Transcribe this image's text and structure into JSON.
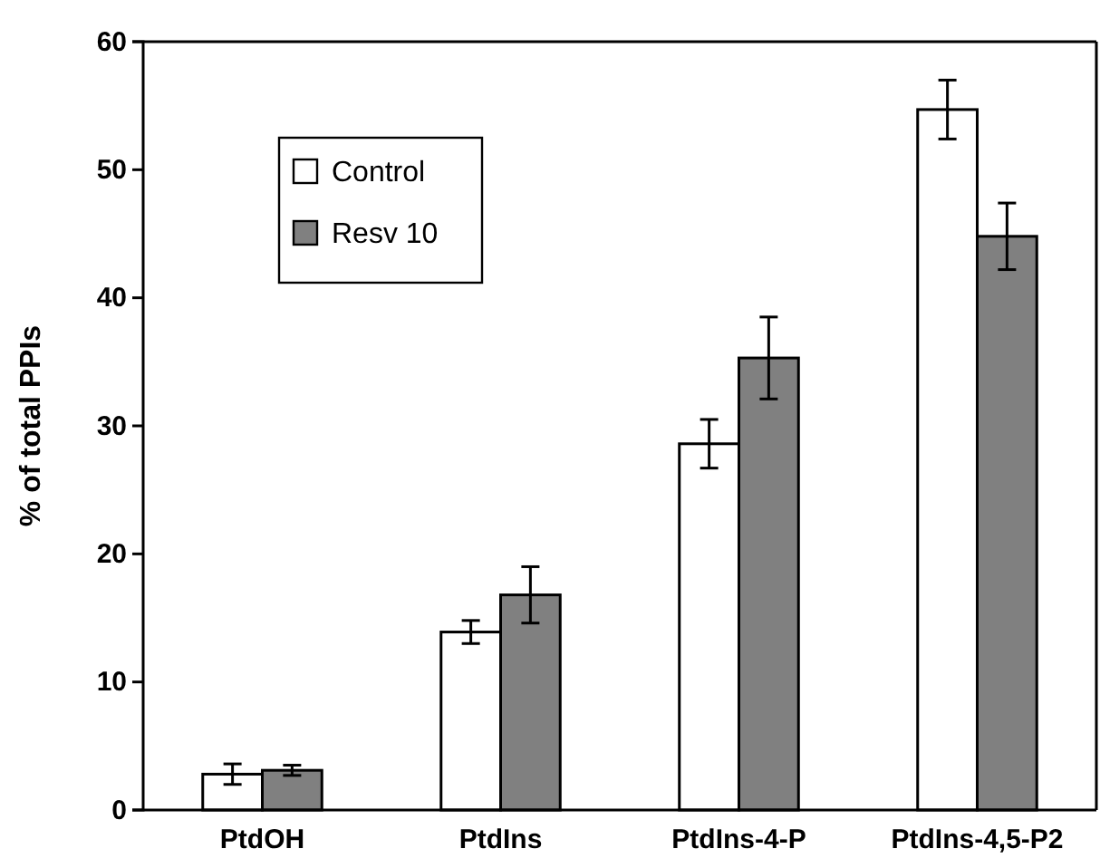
{
  "chart_data": {
    "type": "bar",
    "ylabel": "% of total PPIs",
    "categories": [
      "PtdOH",
      "PtdIns",
      "PtdIns-4-P",
      "PtdIns-4,5-P2"
    ],
    "series": [
      {
        "name": "Control",
        "color": "#ffffff",
        "values": [
          2.8,
          13.9,
          28.6,
          54.7
        ],
        "errors": [
          0.8,
          0.9,
          1.9,
          2.3
        ]
      },
      {
        "name": "Resv 10",
        "color": "#808080",
        "values": [
          3.1,
          16.8,
          35.3,
          44.8
        ],
        "errors": [
          0.4,
          2.2,
          3.2,
          2.6
        ]
      }
    ],
    "ylim": [
      0,
      60
    ],
    "yticks": [
      0,
      10,
      20,
      30,
      40,
      50,
      60
    ],
    "grid": false,
    "legend": "top left"
  }
}
